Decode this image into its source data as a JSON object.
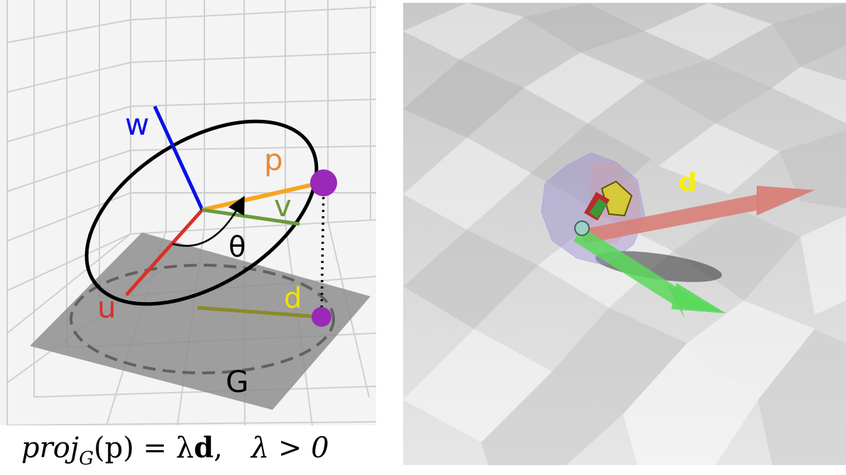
{
  "left_figure": {
    "labels": {
      "w": "w",
      "p": "p",
      "v": "v",
      "theta": "θ",
      "u": "u",
      "d": "d",
      "plane": "G"
    },
    "formula": {
      "lhs_proj": "proj",
      "lhs_sub": "G",
      "lhs_arg": "(p) = λ",
      "lhs_vec": "d",
      "comma": ",",
      "condition": "λ > 0"
    },
    "colors": {
      "w": "#0a10e6",
      "p": "#f5a623",
      "v": "#6a9a3c",
      "u": "#d8302a",
      "d_label": "#f0e200",
      "d_line": "#8a8a2a",
      "point": "#9a28b8",
      "ellipse": "#000000",
      "plane": "#8e8e8e"
    }
  },
  "right_figure": {
    "labels": {
      "d": "d"
    },
    "colors": {
      "d_arrow": "#d88078",
      "green_arrow": "#5ad85a",
      "d_label": "#f7f000",
      "sphere": "#9a8ed0",
      "floor": "#dcdcdc"
    }
  }
}
